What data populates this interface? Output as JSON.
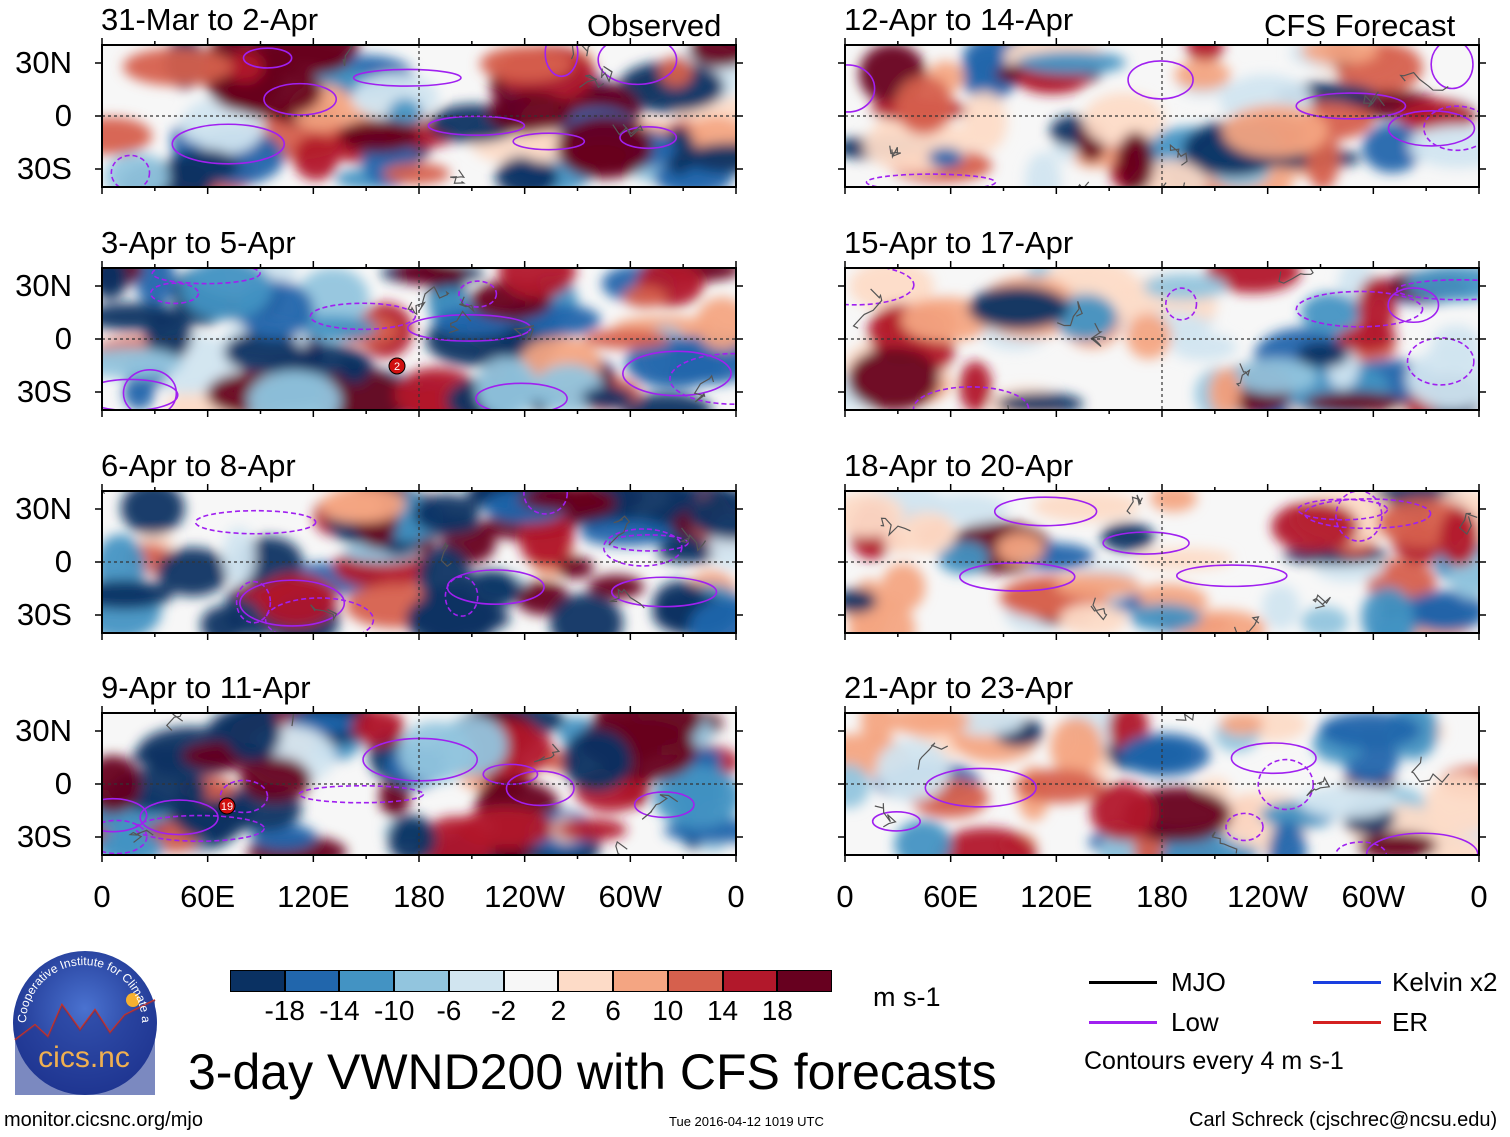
{
  "chart_data": {
    "type": "heatmap",
    "title": "3-day VWND200 with CFS forecasts",
    "variable": "VWND200",
    "units": "m s-1",
    "column_headers": {
      "left": "Observed",
      "right": "CFS Forecast"
    },
    "panels_left": [
      {
        "title": "31-Mar to 2-Apr"
      },
      {
        "title": "3-Apr to 5-Apr",
        "storm_label": "2"
      },
      {
        "title": "6-Apr to 8-Apr"
      },
      {
        "title": "9-Apr to 11-Apr",
        "storm_label": "19"
      }
    ],
    "panels_right": [
      {
        "title": "12-Apr to 14-Apr"
      },
      {
        "title": "15-Apr to 17-Apr"
      },
      {
        "title": "18-Apr to 20-Apr"
      },
      {
        "title": "21-Apr to 23-Apr"
      }
    ],
    "y_ticks": [
      "30N",
      "0",
      "30S"
    ],
    "x_ticks": [
      "0",
      "60E",
      "120E",
      "180",
      "120W",
      "60W",
      "0"
    ],
    "colorbar": {
      "levels": [
        "-18",
        "-14",
        "-10",
        "-6",
        "-2",
        "2",
        "6",
        "10",
        "14",
        "18"
      ],
      "colors": [
        "#0a3162",
        "#2166ac",
        "#4393c3",
        "#92c5de",
        "#d1e5f0",
        "#f7f7f7",
        "#fddbc7",
        "#f4a582",
        "#d6604d",
        "#b2182b",
        "#67001f"
      ]
    },
    "legend": {
      "items": [
        {
          "label": "MJO",
          "color": "#000000"
        },
        {
          "label": "Kelvin x2",
          "color": "#1a3fe0"
        },
        {
          "label": "Low",
          "color": "#a020f0"
        },
        {
          "label": "ER",
          "color": "#d42020"
        }
      ],
      "note": "Contours every 4 m s-1"
    }
  },
  "logo": {
    "text": "cics.nc",
    "ring_text": "Cooperative Institute for Climate and Satellites"
  },
  "footer": {
    "url": "monitor.cicsnc.org/mjo",
    "timestamp": "Tue 2016-04-12 1019 UTC",
    "credit": "Carl Schreck (cjschrec@ncsu.edu)"
  }
}
